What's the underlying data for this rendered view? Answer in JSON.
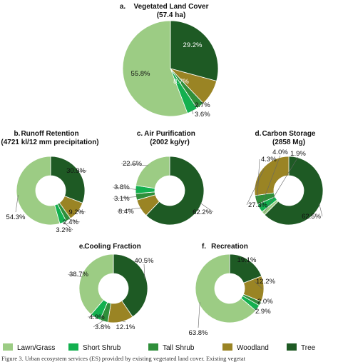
{
  "categories": [
    "Lawn/Grass",
    "Short Shrub",
    "Tall Shrub",
    "Woodland",
    "Tree"
  ],
  "colors": [
    "#9ccc84",
    "#13b04f",
    "#2f8f3a",
    "#9a8424",
    "#1e5a24"
  ],
  "legend": {
    "items": [
      "Lawn/Grass",
      "Short Shrub",
      "Tall Shrub",
      "Woodland",
      "Tree"
    ]
  },
  "caption": "Figure 3. Urban ecosystem services (ES) provided by existing vegetated land cover. Existing vegetat",
  "chart_data": [
    {
      "type": "pie",
      "panel": "a.",
      "title": "Vegetated Land Cover",
      "subtitle": "(57.4 ha)",
      "categories": [
        "Lawn/Grass",
        "Short Shrub",
        "Tall Shrub",
        "Woodland",
        "Tree"
      ],
      "values": [
        55.8,
        3.6,
        2.7,
        8.7,
        29.2
      ],
      "labels": [
        "55.8%",
        "3.6%",
        "2.7%",
        "8.7%",
        "29.2%"
      ]
    },
    {
      "type": "pie",
      "panel": "b.",
      "title": "Runoff Retention",
      "subtitle": "(4721 kl/12 mm precipitation)",
      "categories": [
        "Lawn/Grass",
        "Short Shrub",
        "Tall Shrub",
        "Woodland",
        "Tree"
      ],
      "values": [
        54.3,
        3.2,
        2.4,
        9.2,
        30.9
      ],
      "labels": [
        "54.3%",
        "3.2%",
        "2.4%",
        "9.2%",
        "30.9%"
      ]
    },
    {
      "type": "pie",
      "panel": "c.",
      "title": "Air Purification",
      "subtitle": "(2002 kg/yr)",
      "categories": [
        "Lawn/Grass",
        "Short Shrub",
        "Tall Shrub",
        "Woodland",
        "Tree"
      ],
      "values": [
        22.6,
        3.8,
        3.1,
        8.4,
        62.2
      ],
      "labels": [
        "22.6%",
        "3.8%",
        "3.1%",
        "8.4%",
        "62.2%"
      ]
    },
    {
      "type": "pie",
      "panel": "d.",
      "title": "Carbon Storage",
      "subtitle": "(2858 Mg)",
      "categories": [
        "Lawn/Grass",
        "Short Shrub",
        "Tall Shrub",
        "Woodland",
        "Tree"
      ],
      "values": [
        1.9,
        4.0,
        4.3,
        27.3,
        62.5
      ],
      "labels": [
        "1.9%",
        "4.0%",
        "4.3%",
        "27.3%",
        "62.5%"
      ]
    },
    {
      "type": "pie",
      "panel": "e.",
      "title": "Cooling Fraction",
      "subtitle": "",
      "categories": [
        "Lawn/Grass",
        "Short Shrub",
        "Tall Shrub",
        "Woodland",
        "Tree"
      ],
      "values": [
        38.7,
        4.9,
        3.8,
        12.1,
        40.5
      ],
      "labels": [
        "38.7%",
        "4.9%",
        "3.8%",
        "12.1%",
        "40.5%"
      ]
    },
    {
      "type": "pie",
      "panel": "f.",
      "title": "Recreation",
      "subtitle": "",
      "categories": [
        "Lawn/Grass",
        "Short Shrub",
        "Tall Shrub",
        "Woodland",
        "Tree"
      ],
      "values": [
        63.8,
        2.9,
        2.0,
        12.2,
        19.1
      ],
      "labels": [
        "63.8%",
        "2.9%",
        "2.0%",
        "12.2%",
        "19.1%"
      ]
    }
  ]
}
